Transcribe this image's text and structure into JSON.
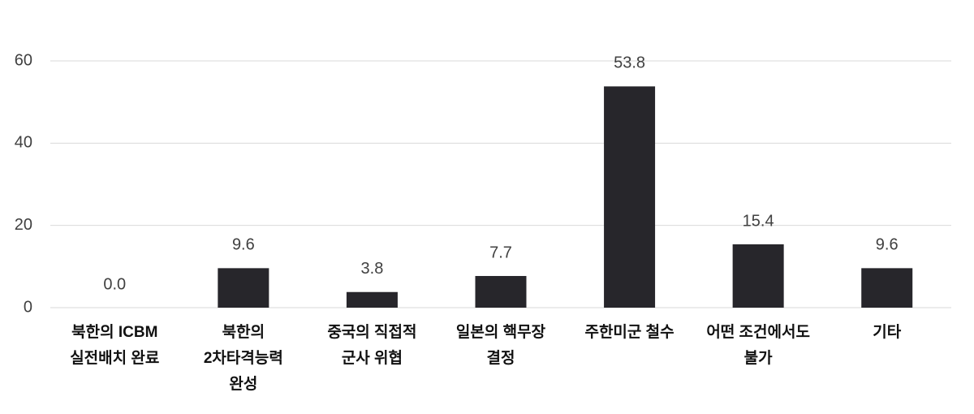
{
  "chart_data": {
    "type": "bar",
    "categories": [
      "북한의 ICBM\n실전배치 완료",
      "북한의\n2차타격능력\n완성",
      "중국의 직접적\n군사 위협",
      "일본의 핵무장\n결정",
      "주한미군 철수",
      "어떤 조건에서도\n불가",
      "기타"
    ],
    "values": [
      0,
      9.6,
      3.8,
      7.7,
      53.8,
      15.4,
      9.6
    ],
    "value_labels": [
      "0.0",
      "9.6",
      "3.8",
      "7.7",
      "53.8",
      "15.4",
      "9.6"
    ],
    "color": "#27262b",
    "ylim": [
      0,
      60
    ],
    "yticks": [
      0,
      20,
      40,
      60
    ],
    "grid": true
  }
}
